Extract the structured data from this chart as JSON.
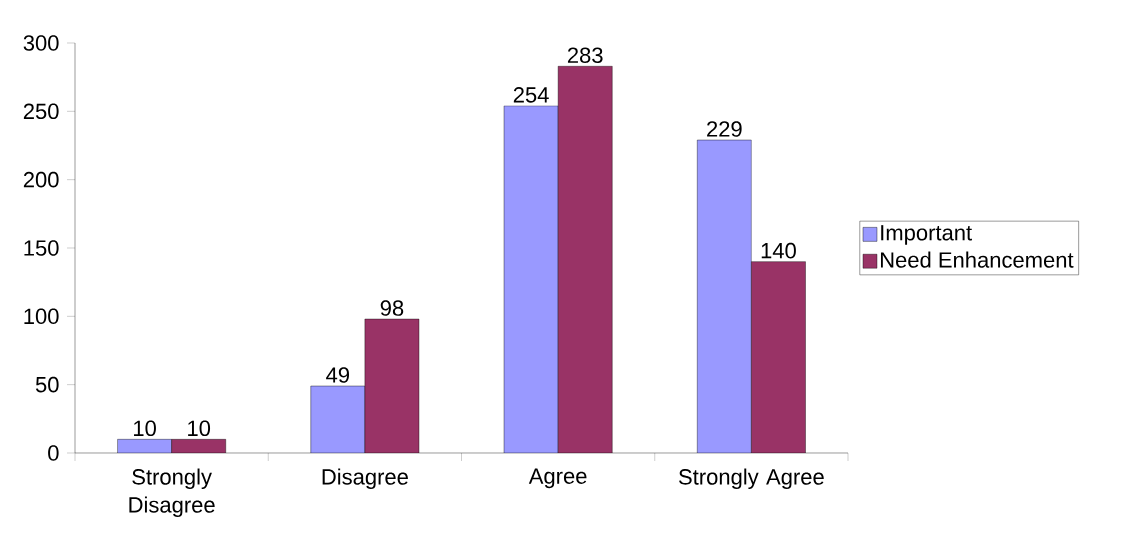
{
  "chart_data": {
    "type": "bar",
    "categories": [
      "Strongly Disagree",
      "Disagree",
      "Agree",
      "Strongly Agree"
    ],
    "series": [
      {
        "name": "Important",
        "color": "#9999ff",
        "values": [
          10,
          49,
          254,
          229
        ]
      },
      {
        "name": "Need Enhancement",
        "color": "#993366",
        "values": [
          10,
          98,
          283,
          140
        ]
      }
    ],
    "ylim": [
      0,
      300
    ],
    "yticks": [
      0,
      50,
      100,
      150,
      200,
      250,
      300
    ],
    "legend": "right",
    "data_labels": true
  }
}
